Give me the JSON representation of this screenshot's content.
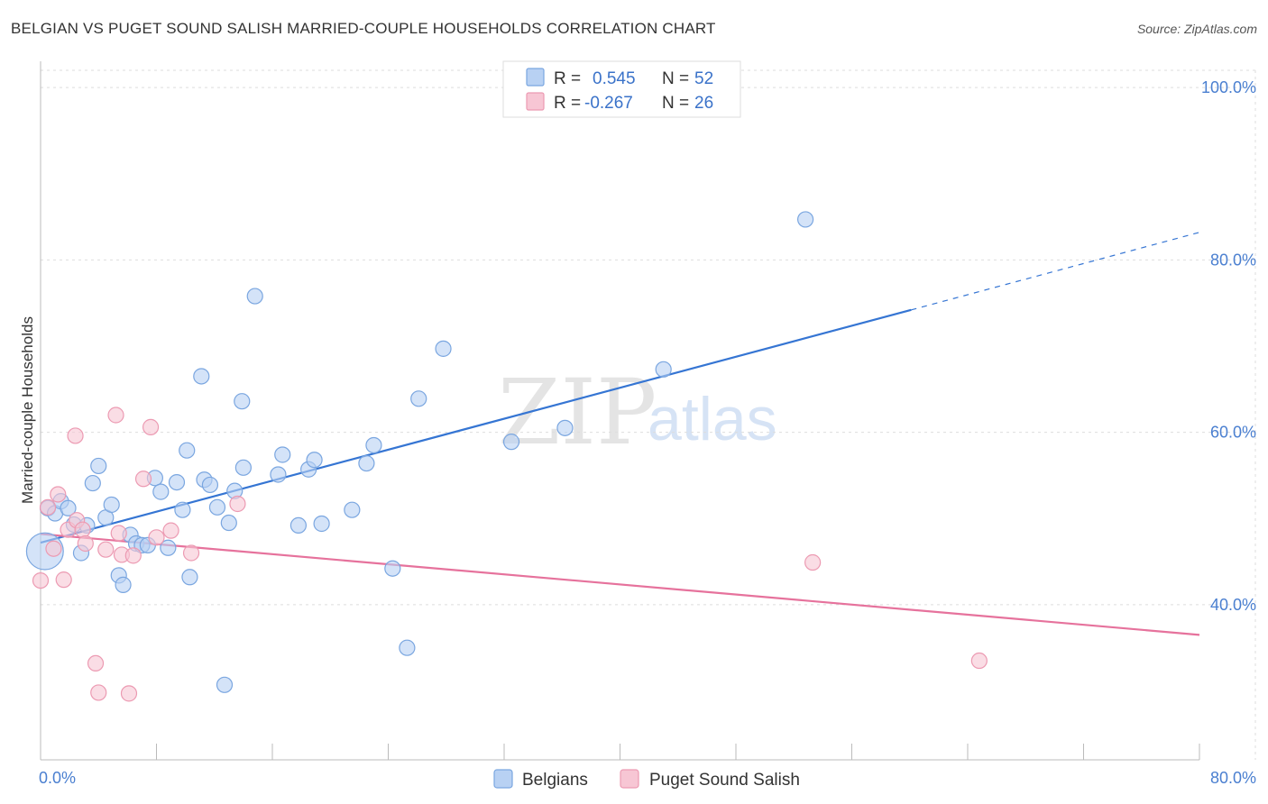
{
  "title": "BELGIAN VS PUGET SOUND SALISH MARRIED-COUPLE HOUSEHOLDS CORRELATION CHART",
  "source": "Source: ZipAtlas.com",
  "watermark": {
    "zip": "ZIP",
    "atlas": "atlas"
  },
  "colors": {
    "belgians_fill": "#b8d1f3",
    "belgians_stroke": "#7aa6e0",
    "belgians_line": "#3575d3",
    "salish_fill": "#f7c6d4",
    "salish_stroke": "#ec9ab2",
    "salish_line": "#e6729c",
    "grid": "#dddddd",
    "tick_text": "#4a7fd0"
  },
  "legend": {
    "r_label": "R =",
    "n_label": "N =",
    "belgians": {
      "r": "0.545",
      "n": "52"
    },
    "salish": {
      "r": "-0.267",
      "n": "26"
    }
  },
  "chart_data": {
    "type": "scatter",
    "title": "BELGIAN VS PUGET SOUND SALISH MARRIED-COUPLE HOUSEHOLDS CORRELATION CHART",
    "xlabel": "",
    "ylabel": "Married-couple Households",
    "xlim": [
      0,
      80
    ],
    "ylim": [
      22,
      102
    ],
    "x_tick_labels": [
      "0.0%",
      "80.0%"
    ],
    "y_ticks": [
      40,
      60,
      80,
      100
    ],
    "y_tick_labels": [
      "40.0%",
      "60.0%",
      "80.0%",
      "100.0%"
    ],
    "grid": true,
    "legend_position": "top-center",
    "series": [
      {
        "name": "Belgians",
        "r": 0.545,
        "n": 52,
        "trend": {
          "x0": 0,
          "y0": 47.2,
          "x1": 60.1,
          "y1": 74.2,
          "dash_to_x": 80,
          "dash_to_y": 83.2
        },
        "points": [
          [
            0.3,
            46.2,
            3
          ],
          [
            0.5,
            51.2,
            1
          ],
          [
            1.0,
            50.6,
            1
          ],
          [
            1.4,
            52.0,
            1
          ],
          [
            1.9,
            51.2,
            1
          ],
          [
            2.3,
            49.3,
            1
          ],
          [
            2.8,
            46.0,
            1
          ],
          [
            3.2,
            49.2,
            1
          ],
          [
            3.6,
            54.1,
            1
          ],
          [
            4.0,
            56.1,
            1
          ],
          [
            4.5,
            50.1,
            1
          ],
          [
            4.9,
            51.6,
            1
          ],
          [
            5.4,
            43.4,
            1
          ],
          [
            5.7,
            42.3,
            1
          ],
          [
            6.2,
            48.1,
            1
          ],
          [
            6.6,
            47.1,
            1
          ],
          [
            7.0,
            46.9,
            1
          ],
          [
            7.4,
            46.9,
            1
          ],
          [
            7.9,
            54.7,
            1
          ],
          [
            8.3,
            53.1,
            1
          ],
          [
            8.8,
            46.6,
            1
          ],
          [
            9.4,
            54.2,
            1
          ],
          [
            9.8,
            51.0,
            1
          ],
          [
            10.1,
            57.9,
            1
          ],
          [
            10.3,
            43.2,
            1
          ],
          [
            11.1,
            66.5,
            1
          ],
          [
            11.3,
            54.5,
            1
          ],
          [
            11.7,
            53.9,
            1
          ],
          [
            12.2,
            51.3,
            1
          ],
          [
            13.0,
            49.5,
            1
          ],
          [
            13.4,
            53.2,
            1
          ],
          [
            13.9,
            63.6,
            1
          ],
          [
            14.0,
            55.9,
            1
          ],
          [
            14.8,
            75.8,
            1
          ],
          [
            16.4,
            55.1,
            1
          ],
          [
            16.7,
            57.4,
            1
          ],
          [
            17.8,
            49.2,
            1
          ],
          [
            18.5,
            55.7,
            1
          ],
          [
            18.9,
            56.8,
            1
          ],
          [
            19.4,
            49.4,
            1
          ],
          [
            21.5,
            51.0,
            1
          ],
          [
            22.5,
            56.4,
            1
          ],
          [
            23.0,
            58.5,
            1
          ],
          [
            24.3,
            44.2,
            1
          ],
          [
            25.3,
            35.0,
            1
          ],
          [
            26.1,
            63.9,
            1
          ],
          [
            27.8,
            69.7,
            1
          ],
          [
            32.5,
            58.9,
            1
          ],
          [
            36.2,
            60.5,
            1
          ],
          [
            43.0,
            67.3,
            1
          ],
          [
            52.8,
            84.7,
            1
          ],
          [
            12.7,
            30.7,
            1
          ]
        ]
      },
      {
        "name": "Puget Sound Salish",
        "r": -0.267,
        "n": 26,
        "trend": {
          "x0": 0,
          "y0": 48.2,
          "x1": 80,
          "y1": 36.5
        },
        "points": [
          [
            0.0,
            42.8,
            1
          ],
          [
            0.5,
            51.3,
            1
          ],
          [
            0.9,
            46.5,
            1
          ],
          [
            1.2,
            52.8,
            1
          ],
          [
            1.6,
            42.9,
            1
          ],
          [
            1.9,
            48.7,
            1
          ],
          [
            2.4,
            59.6,
            1
          ],
          [
            2.5,
            49.8,
            1
          ],
          [
            2.9,
            48.7,
            1
          ],
          [
            3.1,
            47.1,
            1
          ],
          [
            3.8,
            33.2,
            1
          ],
          [
            4.0,
            29.8,
            1
          ],
          [
            4.5,
            46.4,
            1
          ],
          [
            5.2,
            62.0,
            1
          ],
          [
            5.4,
            48.3,
            1
          ],
          [
            5.6,
            45.8,
            1
          ],
          [
            6.1,
            29.7,
            1
          ],
          [
            6.4,
            45.7,
            1
          ],
          [
            7.1,
            54.6,
            1
          ],
          [
            7.6,
            60.6,
            1
          ],
          [
            8.0,
            47.8,
            1
          ],
          [
            9.0,
            48.6,
            1
          ],
          [
            10.4,
            46.0,
            1
          ],
          [
            13.6,
            51.7,
            1
          ],
          [
            53.3,
            44.9,
            1
          ],
          [
            64.8,
            33.5,
            1
          ]
        ]
      }
    ]
  },
  "bottom_legend": {
    "belgians": "Belgians",
    "salish": "Puget Sound Salish"
  }
}
